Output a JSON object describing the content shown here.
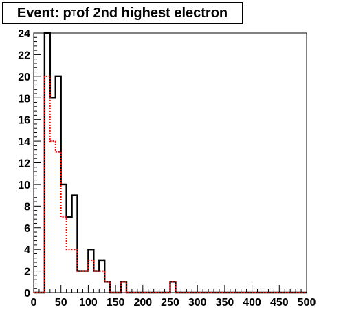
{
  "title": {
    "prefix": "Event: p",
    "subscript": "T",
    "suffix": " of 2nd highest electron"
  },
  "chart_data": {
    "type": "histogram",
    "xlim": [
      0,
      500
    ],
    "ylim": [
      0,
      24
    ],
    "xticks": [
      "0",
      "50",
      "100",
      "150",
      "200",
      "250",
      "300",
      "350",
      "400",
      "450",
      "500"
    ],
    "yticks": [
      "0",
      "2",
      "4",
      "6",
      "8",
      "10",
      "12",
      "14",
      "16",
      "18",
      "20",
      "22",
      "24"
    ],
    "bin_width": 10,
    "series": [
      {
        "style": "solid",
        "color": "#000000",
        "bins": [
          {
            "x": 20,
            "y": 24
          },
          {
            "x": 30,
            "y": 18
          },
          {
            "x": 40,
            "y": 20
          },
          {
            "x": 50,
            "y": 10
          },
          {
            "x": 60,
            "y": 7
          },
          {
            "x": 70,
            "y": 9
          },
          {
            "x": 80,
            "y": 2
          },
          {
            "x": 90,
            "y": 2
          },
          {
            "x": 100,
            "y": 4
          },
          {
            "x": 110,
            "y": 2
          },
          {
            "x": 120,
            "y": 3
          },
          {
            "x": 130,
            "y": 1
          },
          {
            "x": 160,
            "y": 1
          },
          {
            "x": 250,
            "y": 1
          }
        ]
      },
      {
        "style": "dotted",
        "color": "#ff0000",
        "bins": [
          {
            "x": 20,
            "y": 20
          },
          {
            "x": 30,
            "y": 14
          },
          {
            "x": 40,
            "y": 13
          },
          {
            "x": 50,
            "y": 7
          },
          {
            "x": 60,
            "y": 4
          },
          {
            "x": 70,
            "y": 4
          },
          {
            "x": 80,
            "y": 2
          },
          {
            "x": 90,
            "y": 2
          },
          {
            "x": 100,
            "y": 3
          },
          {
            "x": 110,
            "y": 2
          },
          {
            "x": 120,
            "y": 2
          },
          {
            "x": 130,
            "y": 1
          },
          {
            "x": 160,
            "y": 1
          },
          {
            "x": 250,
            "y": 1
          }
        ]
      }
    ]
  }
}
